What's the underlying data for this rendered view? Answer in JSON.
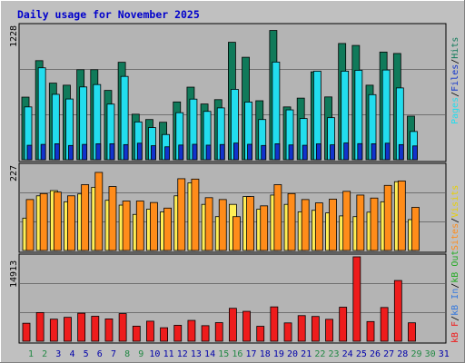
{
  "title": "Daily usage for November 2025",
  "colors": {
    "background": "#c0c0c0",
    "plot": "#b4b4b4",
    "title": "#0000cc",
    "hits": "#107a5a",
    "files": "#22ddee",
    "pages": "#1133cc",
    "visits": "#ffee55",
    "sites": "#ff8c1a",
    "kbf": "#ee1c1c",
    "kbin": "#3377dd",
    "kbout": "#22aa22",
    "weekend": "#228844",
    "weekday": "#0000aa"
  },
  "top_max_label": "1228",
  "mid_max_label": "227",
  "bot_max_label": "14913",
  "legend_top": {
    "pages": "Pages",
    "files": "Files",
    "hits": "Hits",
    "sep": "/"
  },
  "legend_mid": {
    "sites": "Sites",
    "visits": "Visits",
    "sep": "/"
  },
  "legend_bot": {
    "kbf": "kB F",
    "kbin": "kB In",
    "kbout": "kB Out",
    "sep": "/"
  },
  "chart_data": [
    {
      "type": "bar",
      "title": "Daily usage for November 2025",
      "categories": [
        "1",
        "2",
        "3",
        "4",
        "5",
        "6",
        "7",
        "8",
        "9",
        "10",
        "11",
        "12",
        "13",
        "14",
        "15",
        "16",
        "17",
        "18",
        "19",
        "20",
        "21",
        "22",
        "23",
        "24",
        "25",
        "26",
        "27",
        "28",
        "29",
        "30",
        "31"
      ],
      "weekend_days": [
        "1",
        "2",
        "8",
        "9",
        "15",
        "16",
        "22",
        "23",
        "29",
        "30"
      ],
      "ylim": [
        0,
        1228
      ],
      "series": [
        {
          "name": "Hits",
          "values": [
            576,
            912,
            705,
            686,
            829,
            829,
            638,
            897,
            419,
            370,
            345,
            532,
            668,
            513,
            553,
            1081,
            943,
            543,
            1190,
            486,
            567,
            809,
            578,
            1070,
            1052,
            686,
            991,
            978,
            401,
            0,
            0
          ]
        },
        {
          "name": "Files",
          "values": [
            486,
            846,
            602,
            559,
            670,
            692,
            512,
            767,
            348,
            296,
            232,
            433,
            558,
            445,
            477,
            648,
            531,
            370,
            899,
            459,
            379,
            815,
            387,
            815,
            823,
            599,
            826,
            661,
            260,
            0,
            0
          ]
        },
        {
          "name": "Pages",
          "values": [
            133,
            141,
            147,
            131,
            141,
            147,
            147,
            139,
            152,
            129,
            119,
            135,
            142,
            134,
            140,
            153,
            142,
            131,
            147,
            136,
            133,
            146,
            137,
            154,
            148,
            147,
            152,
            139,
            127,
            0,
            0
          ]
        }
      ]
    },
    {
      "type": "bar",
      "categories": [
        "1",
        "2",
        "3",
        "4",
        "5",
        "6",
        "7",
        "8",
        "9",
        "10",
        "11",
        "12",
        "13",
        "14",
        "15",
        "16",
        "17",
        "18",
        "19",
        "20",
        "21",
        "22",
        "23",
        "24",
        "25",
        "26",
        "27",
        "28",
        "29",
        "30",
        "31"
      ],
      "ylim": [
        0,
        227
      ],
      "series": [
        {
          "name": "Visits",
          "values": [
            87,
            147,
            161,
            131,
            152,
            170,
            135,
            122,
            97,
            111,
            104,
            147,
            182,
            124,
            91,
            124,
            145,
            111,
            149,
            124,
            104,
            108,
            101,
            93,
            91,
            103,
            131,
            185,
            83,
            0,
            0
          ]
        },
        {
          "name": "Sites",
          "values": [
            137,
            153,
            157,
            147,
            177,
            210,
            172,
            133,
            133,
            129,
            114,
            193,
            192,
            142,
            137,
            91,
            145,
            120,
            177,
            153,
            137,
            128,
            138,
            159,
            149,
            141,
            175,
            187,
            116,
            0,
            0
          ]
        }
      ]
    },
    {
      "type": "bar",
      "categories": [
        "1",
        "2",
        "3",
        "4",
        "5",
        "6",
        "7",
        "8",
        "9",
        "10",
        "11",
        "12",
        "13",
        "14",
        "15",
        "16",
        "17",
        "18",
        "19",
        "20",
        "21",
        "22",
        "23",
        "24",
        "25",
        "26",
        "27",
        "28",
        "29",
        "30",
        "31"
      ],
      "ylim": [
        0,
        14913
      ],
      "series": [
        {
          "name": "kB F",
          "values": [
            3180,
            5062,
            3898,
            4223,
            4946,
            4412,
            3944,
            4883,
            2661,
            3542,
            2384,
            2818,
            3680,
            2749,
            3284,
            5816,
            5281,
            2640,
            6070,
            3238,
            4526,
            4377,
            3872,
            6013,
            14913,
            3478,
            5959,
            10730,
            3256,
            0,
            0
          ]
        }
      ]
    }
  ]
}
